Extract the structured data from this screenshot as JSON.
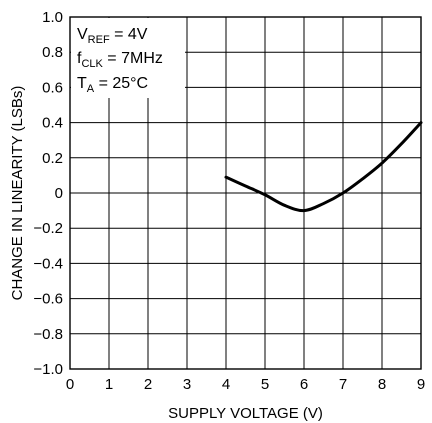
{
  "chart_data": {
    "type": "line",
    "xlabel": "SUPPLY VOLTAGE (V)",
    "ylabel": "CHANGE IN LINEARITY (LSBs)",
    "xlim": [
      0,
      9
    ],
    "ylim": [
      -1.0,
      1.0
    ],
    "xticks": [
      0,
      1,
      2,
      3,
      4,
      5,
      6,
      7,
      8,
      9
    ],
    "xtick_labels": [
      "0",
      "1",
      "2",
      "3",
      "4",
      "5",
      "6",
      "7",
      "8",
      "9"
    ],
    "yticks": [
      1.0,
      0.8,
      0.6,
      0.4,
      0.2,
      0,
      -0.2,
      -0.4,
      -0.6,
      -0.8,
      -1.0
    ],
    "ytick_labels": [
      "1.0",
      "0.8",
      "0.6",
      "0.4",
      "0.2",
      "0",
      "−0.2",
      "−0.4",
      "−0.6",
      "−0.8",
      "−1.0"
    ],
    "grid": true,
    "series": [
      {
        "color": "#000000",
        "x": [
          4.0,
          4.5,
          5.0,
          5.5,
          6.0,
          6.5,
          7.0,
          7.5,
          8.0,
          8.5,
          9.0
        ],
        "y": [
          0.09,
          0.04,
          -0.01,
          -0.07,
          -0.1,
          -0.06,
          0.0,
          0.08,
          0.17,
          0.28,
          0.4
        ]
      }
    ],
    "annotations": [
      {
        "main": "V",
        "sub": "REF",
        "rest": " = 4V"
      },
      {
        "main": "f",
        "sub": "CLK",
        "rest": " = 7MHz"
      },
      {
        "main": "T",
        "sub": "A",
        "rest": " = 25°C"
      }
    ]
  }
}
